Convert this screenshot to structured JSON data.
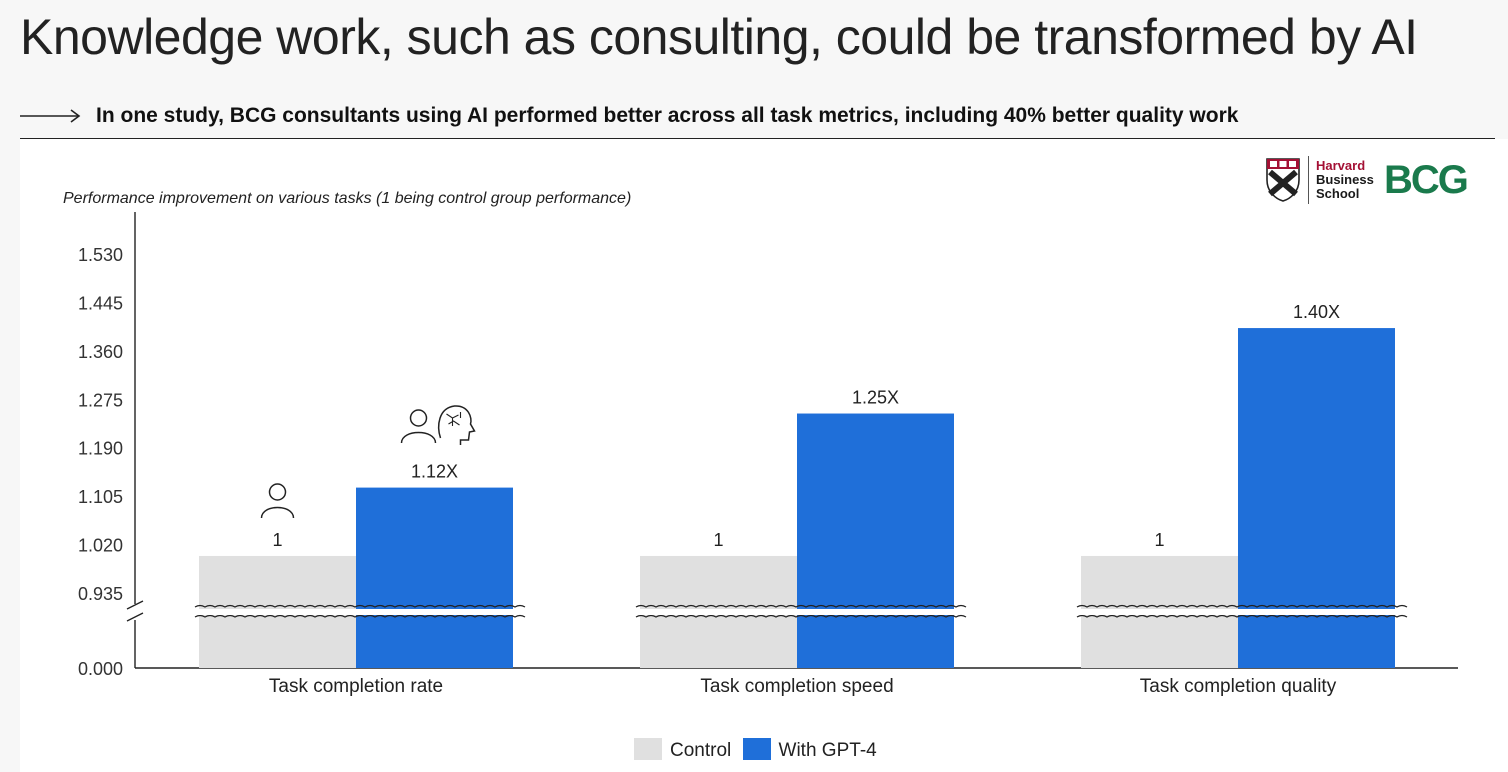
{
  "header": {
    "title": "Knowledge work, such as consulting, could be transformed by AI",
    "subtitle": "In one study, BCG consultants using AI performed better across all task metrics, including 40% better quality work"
  },
  "logos": {
    "hbs_line1": "Harvard",
    "hbs_line2": "Business",
    "hbs_line3": "School",
    "bcg": "BCG"
  },
  "colors": {
    "control": "#e0e0e0",
    "gpt4": "#1f6fd9",
    "axis": "#222222",
    "bcg_green": "#1a7a4c",
    "hbs_red": "#a41034"
  },
  "icons": {
    "control_icon": "person-icon",
    "gpt4_icon": "person-ai-brain-icon",
    "axis_break": "axis-break-icon"
  },
  "chart_data": {
    "type": "bar",
    "title": "Performance improvement on various tasks (1 being control group performance)",
    "categories": [
      "Task completion rate",
      "Task completion speed",
      "Task completion quality"
    ],
    "series": [
      {
        "name": "Control",
        "values": [
          1,
          1,
          1
        ],
        "labels": [
          "1",
          "1",
          "1"
        ]
      },
      {
        "name": "With GPT-4",
        "values": [
          1.12,
          1.25,
          1.4
        ],
        "labels": [
          "1.12X",
          "1.25X",
          "1.40X"
        ]
      }
    ],
    "yticks": [
      "0.000",
      "0.935",
      "1.020",
      "1.105",
      "1.190",
      "1.275",
      "1.360",
      "1.445",
      "1.530"
    ],
    "ylim": [
      0.85,
      1.55
    ],
    "axis_break": true,
    "legend_position": "bottom-center",
    "grid": false
  }
}
